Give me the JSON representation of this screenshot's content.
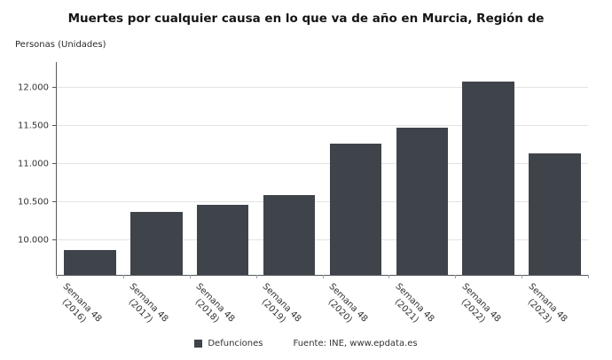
{
  "chart_data": {
    "type": "bar",
    "title": "Muertes por cualquier causa en lo que va de año en Murcia, Región de",
    "ylabel": "Personas (Unidades)",
    "categories": [
      "Semana 48 (2016)",
      "Semana 48 (2017)",
      "Semana 48 (2018)",
      "Semana 48 (2019)",
      "Semana 48 (2020)",
      "Semana 48 (2021)",
      "Semana 48 (2022)",
      "Semana 48 (2023)"
    ],
    "category_lines": [
      [
        "Semana 48",
        "(2016)"
      ],
      [
        "Semana 48",
        "(2017)"
      ],
      [
        "Semana 48",
        "(2018)"
      ],
      [
        "Semana 48",
        "(2019)"
      ],
      [
        "Semana 48",
        "(2020)"
      ],
      [
        "Semana 48",
        "(2021)"
      ],
      [
        "Semana 48",
        "(2022)"
      ],
      [
        "Semana 48",
        "(2023)"
      ]
    ],
    "values": [
      9880,
      10380,
      10470,
      10600,
      11270,
      11480,
      12090,
      11140
    ],
    "ylim": [
      9550,
      12340
    ],
    "yticks": [
      10000,
      10500,
      11000,
      11500,
      12000
    ],
    "ytick_labels": [
      "10.000",
      "10.500",
      "11.000",
      "11.500",
      "12.000"
    ],
    "grid": true,
    "legend_position": "bottom",
    "bar_color": "#3f444a",
    "axis_color": "#55595e",
    "legend": {
      "label": "Defunciones"
    },
    "source": "Fuente: INE, www.epdata.es"
  }
}
